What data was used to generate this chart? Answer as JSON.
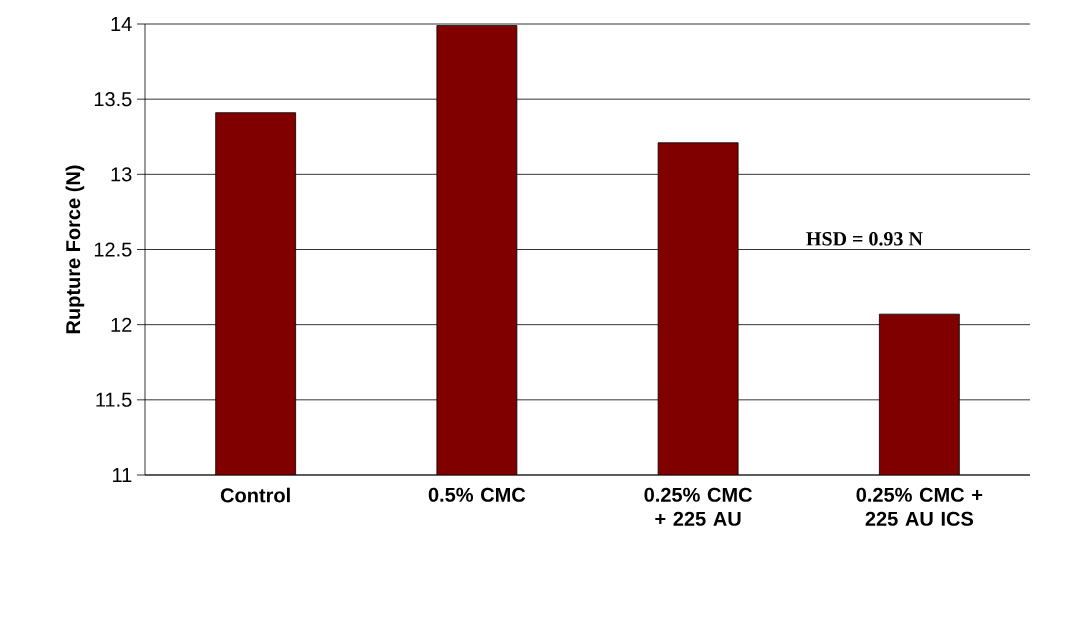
{
  "chart_data": {
    "type": "bar",
    "ylabel": "Rupture Force (N)",
    "categories": [
      "Control",
      "0.5% CMC",
      "0.25% CMC + 225 AU",
      "0.25% CMC + 225 AU ICS"
    ],
    "values": [
      13.41,
      13.99,
      13.21,
      12.07
    ],
    "color": "#800000",
    "ylim": [
      11,
      14
    ],
    "yticks": [
      11,
      11.5,
      12,
      12.5,
      13,
      13.5,
      14
    ],
    "grid": "y",
    "annotations": [
      "HSD = 0.93 N"
    ]
  }
}
